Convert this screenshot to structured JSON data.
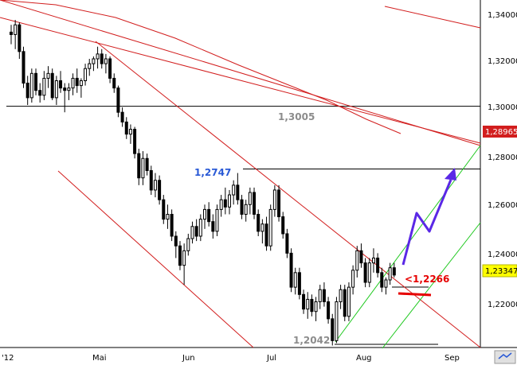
{
  "chart_data": {
    "type": "candlestick",
    "title": "",
    "xlabel": "",
    "ylabel": "",
    "ylim": [
      1.206,
      1.344
    ],
    "grid": false,
    "y_ticks": [
      "1,34000",
      "1,32000",
      "1,30000",
      "1,28000",
      "1,26000",
      "1,24000",
      "1,22000"
    ],
    "y_tick_values": [
      1.34,
      1.32,
      1.3,
      1.28,
      1.26,
      1.24,
      1.22
    ],
    "x_ticks": [
      "'12",
      "Mai",
      "Jun",
      "Jul",
      "Aug",
      "Sep"
    ],
    "x_tick_days": [
      0,
      30,
      61,
      91,
      122,
      153
    ],
    "price_badges": [
      {
        "label": "1,28965",
        "value": 1.28965,
        "color": "#d21e1e"
      },
      {
        "label": "1,23347",
        "value": 1.23347,
        "color": "#ffff00"
      }
    ],
    "levels": [
      {
        "label": "1,3005",
        "value": 1.3005,
        "color": "#8c8c8c"
      },
      {
        "label": "1,2747",
        "value": 1.2747,
        "color": "#2a5ad6"
      },
      {
        "label": "1,2042",
        "value": 1.2042,
        "color": "#8c8c8c"
      },
      {
        "label": "<1,2266",
        "value": 1.2266,
        "color": "#e60000"
      }
    ],
    "series_ohlc": [
      [
        1.333,
        1.336,
        1.328,
        1.332
      ],
      [
        1.332,
        1.338,
        1.326,
        1.336
      ],
      [
        1.336,
        1.337,
        1.322,
        1.325
      ],
      [
        1.325,
        1.327,
        1.31,
        1.312
      ],
      [
        1.312,
        1.315,
        1.303,
        1.306
      ],
      [
        1.306,
        1.318,
        1.304,
        1.316
      ],
      [
        1.316,
        1.318,
        1.307,
        1.309
      ],
      [
        1.309,
        1.312,
        1.304,
        1.307
      ],
      [
        1.307,
        1.317,
        1.305,
        1.314
      ],
      [
        1.314,
        1.319,
        1.31,
        1.316
      ],
      [
        1.316,
        1.318,
        1.305,
        1.306
      ],
      [
        1.306,
        1.315,
        1.303,
        1.313
      ],
      [
        1.313,
        1.317,
        1.308,
        1.31
      ],
      [
        1.31,
        1.312,
        1.3,
        1.309
      ],
      [
        1.309,
        1.312,
        1.305,
        1.31
      ],
      [
        1.31,
        1.316,
        1.307,
        1.314
      ],
      [
        1.314,
        1.318,
        1.308,
        1.311
      ],
      [
        1.311,
        1.314,
        1.306,
        1.313
      ],
      [
        1.313,
        1.32,
        1.311,
        1.318
      ],
      [
        1.318,
        1.322,
        1.315,
        1.32
      ],
      [
        1.32,
        1.323,
        1.317,
        1.322
      ],
      [
        1.322,
        1.327,
        1.318,
        1.324
      ],
      [
        1.324,
        1.326,
        1.318,
        1.32
      ],
      [
        1.32,
        1.324,
        1.316,
        1.322
      ],
      [
        1.322,
        1.323,
        1.312,
        1.314
      ],
      [
        1.314,
        1.316,
        1.308,
        1.31
      ],
      [
        1.31,
        1.311,
        1.298,
        1.3
      ],
      [
        1.3,
        1.302,
        1.294,
        1.296
      ],
      [
        1.296,
        1.298,
        1.289,
        1.291
      ],
      [
        1.291,
        1.295,
        1.287,
        1.293
      ],
      [
        1.293,
        1.294,
        1.281,
        1.283
      ],
      [
        1.283,
        1.285,
        1.27,
        1.273
      ],
      [
        1.273,
        1.284,
        1.27,
        1.281
      ],
      [
        1.281,
        1.283,
        1.274,
        1.276
      ],
      [
        1.276,
        1.278,
        1.266,
        1.268
      ],
      [
        1.268,
        1.275,
        1.265,
        1.272
      ],
      [
        1.272,
        1.274,
        1.262,
        1.264
      ],
      [
        1.264,
        1.266,
        1.254,
        1.256
      ],
      [
        1.256,
        1.262,
        1.252,
        1.258
      ],
      [
        1.258,
        1.26,
        1.247,
        1.249
      ],
      [
        1.249,
        1.251,
        1.24,
        1.245
      ],
      [
        1.245,
        1.247,
        1.235,
        1.237
      ],
      [
        1.237,
        1.246,
        1.229,
        1.243
      ],
      [
        1.243,
        1.25,
        1.241,
        1.248
      ],
      [
        1.248,
        1.255,
        1.246,
        1.253
      ],
      [
        1.253,
        1.256,
        1.247,
        1.249
      ],
      [
        1.249,
        1.258,
        1.247,
        1.256
      ],
      [
        1.256,
        1.262,
        1.252,
        1.26
      ],
      [
        1.26,
        1.263,
        1.253,
        1.255
      ],
      [
        1.255,
        1.258,
        1.248,
        1.251
      ],
      [
        1.251,
        1.262,
        1.249,
        1.26
      ],
      [
        1.26,
        1.266,
        1.257,
        1.264
      ],
      [
        1.264,
        1.269,
        1.258,
        1.261
      ],
      [
        1.261,
        1.268,
        1.258,
        1.266
      ],
      [
        1.266,
        1.272,
        1.262,
        1.27
      ],
      [
        1.27,
        1.275,
        1.262,
        1.264
      ],
      [
        1.264,
        1.266,
        1.256,
        1.258
      ],
      [
        1.258,
        1.264,
        1.255,
        1.262
      ],
      [
        1.262,
        1.269,
        1.258,
        1.267
      ],
      [
        1.267,
        1.269,
        1.256,
        1.258
      ],
      [
        1.258,
        1.26,
        1.249,
        1.251
      ],
      [
        1.251,
        1.256,
        1.246,
        1.254
      ],
      [
        1.254,
        1.257,
        1.243,
        1.245
      ],
      [
        1.245,
        1.262,
        1.243,
        1.26
      ],
      [
        1.26,
        1.27,
        1.257,
        1.268
      ],
      [
        1.268,
        1.27,
        1.255,
        1.257
      ],
      [
        1.257,
        1.259,
        1.248,
        1.25
      ],
      [
        1.25,
        1.252,
        1.24,
        1.242
      ],
      [
        1.242,
        1.244,
        1.226,
        1.228
      ],
      [
        1.228,
        1.236,
        1.225,
        1.234
      ],
      [
        1.234,
        1.236,
        1.223,
        1.225
      ],
      [
        1.225,
        1.227,
        1.217,
        1.219
      ],
      [
        1.219,
        1.226,
        1.215,
        1.223
      ],
      [
        1.223,
        1.225,
        1.216,
        1.218
      ],
      [
        1.218,
        1.224,
        1.214,
        1.222
      ],
      [
        1.222,
        1.229,
        1.219,
        1.227
      ],
      [
        1.227,
        1.23,
        1.22,
        1.222
      ],
      [
        1.222,
        1.224,
        1.213,
        1.215
      ],
      [
        1.215,
        1.217,
        1.204,
        1.206
      ],
      [
        1.206,
        1.224,
        1.205,
        1.222
      ],
      [
        1.222,
        1.229,
        1.219,
        1.227
      ],
      [
        1.227,
        1.229,
        1.214,
        1.216
      ],
      [
        1.216,
        1.23,
        1.214,
        1.228
      ],
      [
        1.228,
        1.237,
        1.225,
        1.235
      ],
      [
        1.235,
        1.245,
        1.232,
        1.243
      ],
      [
        1.243,
        1.246,
        1.236,
        1.238
      ],
      [
        1.238,
        1.24,
        1.228,
        1.23
      ],
      [
        1.23,
        1.24,
        1.228,
        1.238
      ],
      [
        1.238,
        1.244,
        1.234,
        1.24
      ],
      [
        1.24,
        1.242,
        1.232,
        1.234
      ],
      [
        1.234,
        1.236,
        1.226,
        1.228
      ],
      [
        1.228,
        1.232,
        1.225,
        1.231
      ],
      [
        1.231,
        1.238,
        1.229,
        1.236
      ],
      [
        1.236,
        1.238,
        1.232,
        1.233
      ]
    ]
  }
}
